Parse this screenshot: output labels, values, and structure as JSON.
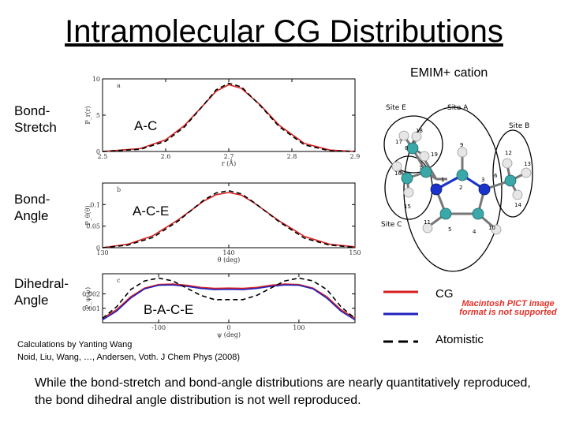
{
  "slide": {
    "title": "Intramolecular CG Distributions",
    "cation_label": "EMIM+ cation",
    "row_labels": [
      "Bond-Stretch",
      "Bond-Angle",
      "Dihedral-Angle"
    ],
    "panel_labels": [
      "A-C",
      "A-C-E",
      "B-A-C-E"
    ],
    "site_labels": [
      "Site E",
      "Site A",
      "Site B",
      "Site C"
    ],
    "atom_numbers": [
      "18",
      "9",
      "17",
      "8",
      "19",
      "12",
      "13",
      "6",
      "16",
      "7",
      "3",
      "1",
      "2",
      "14",
      "15",
      "11",
      "5",
      "4",
      "10"
    ],
    "pict_note": "Macintosh PICT image format is not supported",
    "legend": {
      "cg": "CG",
      "atomistic": "Atomistic"
    },
    "citation_line1": "Calculations by Yanting Wang",
    "citation_line2": "Noid, Liu, Wang, …, Andersen, Voth.  J Chem Phys (2008)",
    "conclusion": "While the bond-stretch and bond-angle distributions are nearly quantitatively reproduced, the bond dihedral angle distribution is not well reproduced.",
    "colors": {
      "cg_red": "#d62020",
      "cg_blue": "#2020c0",
      "atomistic": "#000000",
      "carbon": "#3aa8a8",
      "nitrogen": "#1a33cc",
      "hydrogen": "#e8e8e8"
    }
  },
  "chart_data": [
    {
      "type": "line",
      "panel_letter": "a",
      "xlabel": "r (Å)",
      "ylabel": "P_r(r)",
      "xlim": [
        2.5,
        2.9
      ],
      "ylim": [
        0,
        10
      ],
      "xticks": [
        "2.5",
        "2.6",
        "2.7",
        "2.8",
        "2.9"
      ],
      "yticks": [
        "0",
        "5",
        "10"
      ],
      "series": [
        {
          "style": "cg",
          "x": [
            2.5,
            2.56,
            2.6,
            2.63,
            2.66,
            2.68,
            2.7,
            2.72,
            2.75,
            2.78,
            2.82,
            2.86,
            2.9
          ],
          "y": [
            0.0,
            0.4,
            1.6,
            3.6,
            6.4,
            8.3,
            9.2,
            8.7,
            6.4,
            3.6,
            1.1,
            0.2,
            0.0
          ]
        },
        {
          "style": "atomistic",
          "x": [
            2.5,
            2.56,
            2.6,
            2.63,
            2.66,
            2.68,
            2.7,
            2.72,
            2.75,
            2.78,
            2.82,
            2.86,
            2.9
          ],
          "y": [
            0.0,
            0.3,
            1.4,
            3.4,
            6.4,
            8.5,
            9.4,
            8.9,
            6.3,
            3.4,
            0.9,
            0.1,
            0.0
          ]
        }
      ]
    },
    {
      "type": "line",
      "panel_letter": "b",
      "xlabel": "θ (deg)",
      "ylabel": "P_θ(θ)",
      "xlim": [
        130,
        150
      ],
      "ylim": [
        0,
        0.15
      ],
      "xticks": [
        "130",
        "140",
        "150"
      ],
      "yticks": [
        "0",
        "0.05",
        "0.1"
      ],
      "series": [
        {
          "style": "cg",
          "x": [
            130,
            132,
            134,
            136,
            138,
            139,
            140,
            141,
            142,
            144,
            146,
            148,
            150
          ],
          "y": [
            0.0,
            0.008,
            0.028,
            0.065,
            0.108,
            0.123,
            0.128,
            0.122,
            0.104,
            0.062,
            0.026,
            0.008,
            0.002
          ]
        },
        {
          "style": "atomistic",
          "x": [
            130,
            132,
            134,
            136,
            138,
            139,
            140,
            141,
            142,
            144,
            146,
            148,
            150
          ],
          "y": [
            0.0,
            0.006,
            0.024,
            0.062,
            0.11,
            0.127,
            0.132,
            0.125,
            0.105,
            0.06,
            0.022,
            0.006,
            0.001
          ]
        }
      ]
    },
    {
      "type": "line",
      "panel_letter": "c",
      "xlabel": "ψ (deg)",
      "ylabel": "P_ψ(ψ)",
      "xlim": [
        -180,
        180
      ],
      "ylim": [
        0,
        0.0034
      ],
      "xticks": [
        "-100",
        "0",
        "100"
      ],
      "yticks": [
        "0.001",
        "0.002"
      ],
      "series": [
        {
          "style": "cg_red",
          "x": [
            -180,
            -160,
            -140,
            -120,
            -100,
            -80,
            -60,
            -40,
            -20,
            0,
            20,
            40,
            60,
            80,
            100,
            120,
            140,
            160,
            180
          ],
          "y": [
            0.0003,
            0.0009,
            0.0018,
            0.0024,
            0.00265,
            0.00268,
            0.0026,
            0.00245,
            0.00238,
            0.0024,
            0.00238,
            0.00245,
            0.0026,
            0.00268,
            0.00265,
            0.0024,
            0.0018,
            0.0009,
            0.0003
          ]
        },
        {
          "style": "cg_blue",
          "x": [
            -180,
            -160,
            -140,
            -120,
            -100,
            -80,
            -60,
            -40,
            -20,
            0,
            20,
            40,
            60,
            80,
            100,
            120,
            140,
            160,
            180
          ],
          "y": [
            0.0002,
            0.0008,
            0.0017,
            0.00235,
            0.0026,
            0.00262,
            0.00252,
            0.00238,
            0.0023,
            0.00232,
            0.0023,
            0.00238,
            0.00252,
            0.00262,
            0.0026,
            0.00235,
            0.0017,
            0.0008,
            0.0002
          ]
        },
        {
          "style": "atomistic",
          "x": [
            -180,
            -160,
            -140,
            -120,
            -100,
            -80,
            -60,
            -40,
            -20,
            0,
            20,
            40,
            60,
            80,
            100,
            120,
            140,
            160,
            180
          ],
          "y": [
            0.0003,
            0.0011,
            0.0023,
            0.0029,
            0.0031,
            0.0029,
            0.0024,
            0.0019,
            0.0016,
            0.0016,
            0.0016,
            0.0019,
            0.0024,
            0.0029,
            0.0031,
            0.0029,
            0.0023,
            0.0011,
            0.0003
          ]
        }
      ]
    }
  ]
}
